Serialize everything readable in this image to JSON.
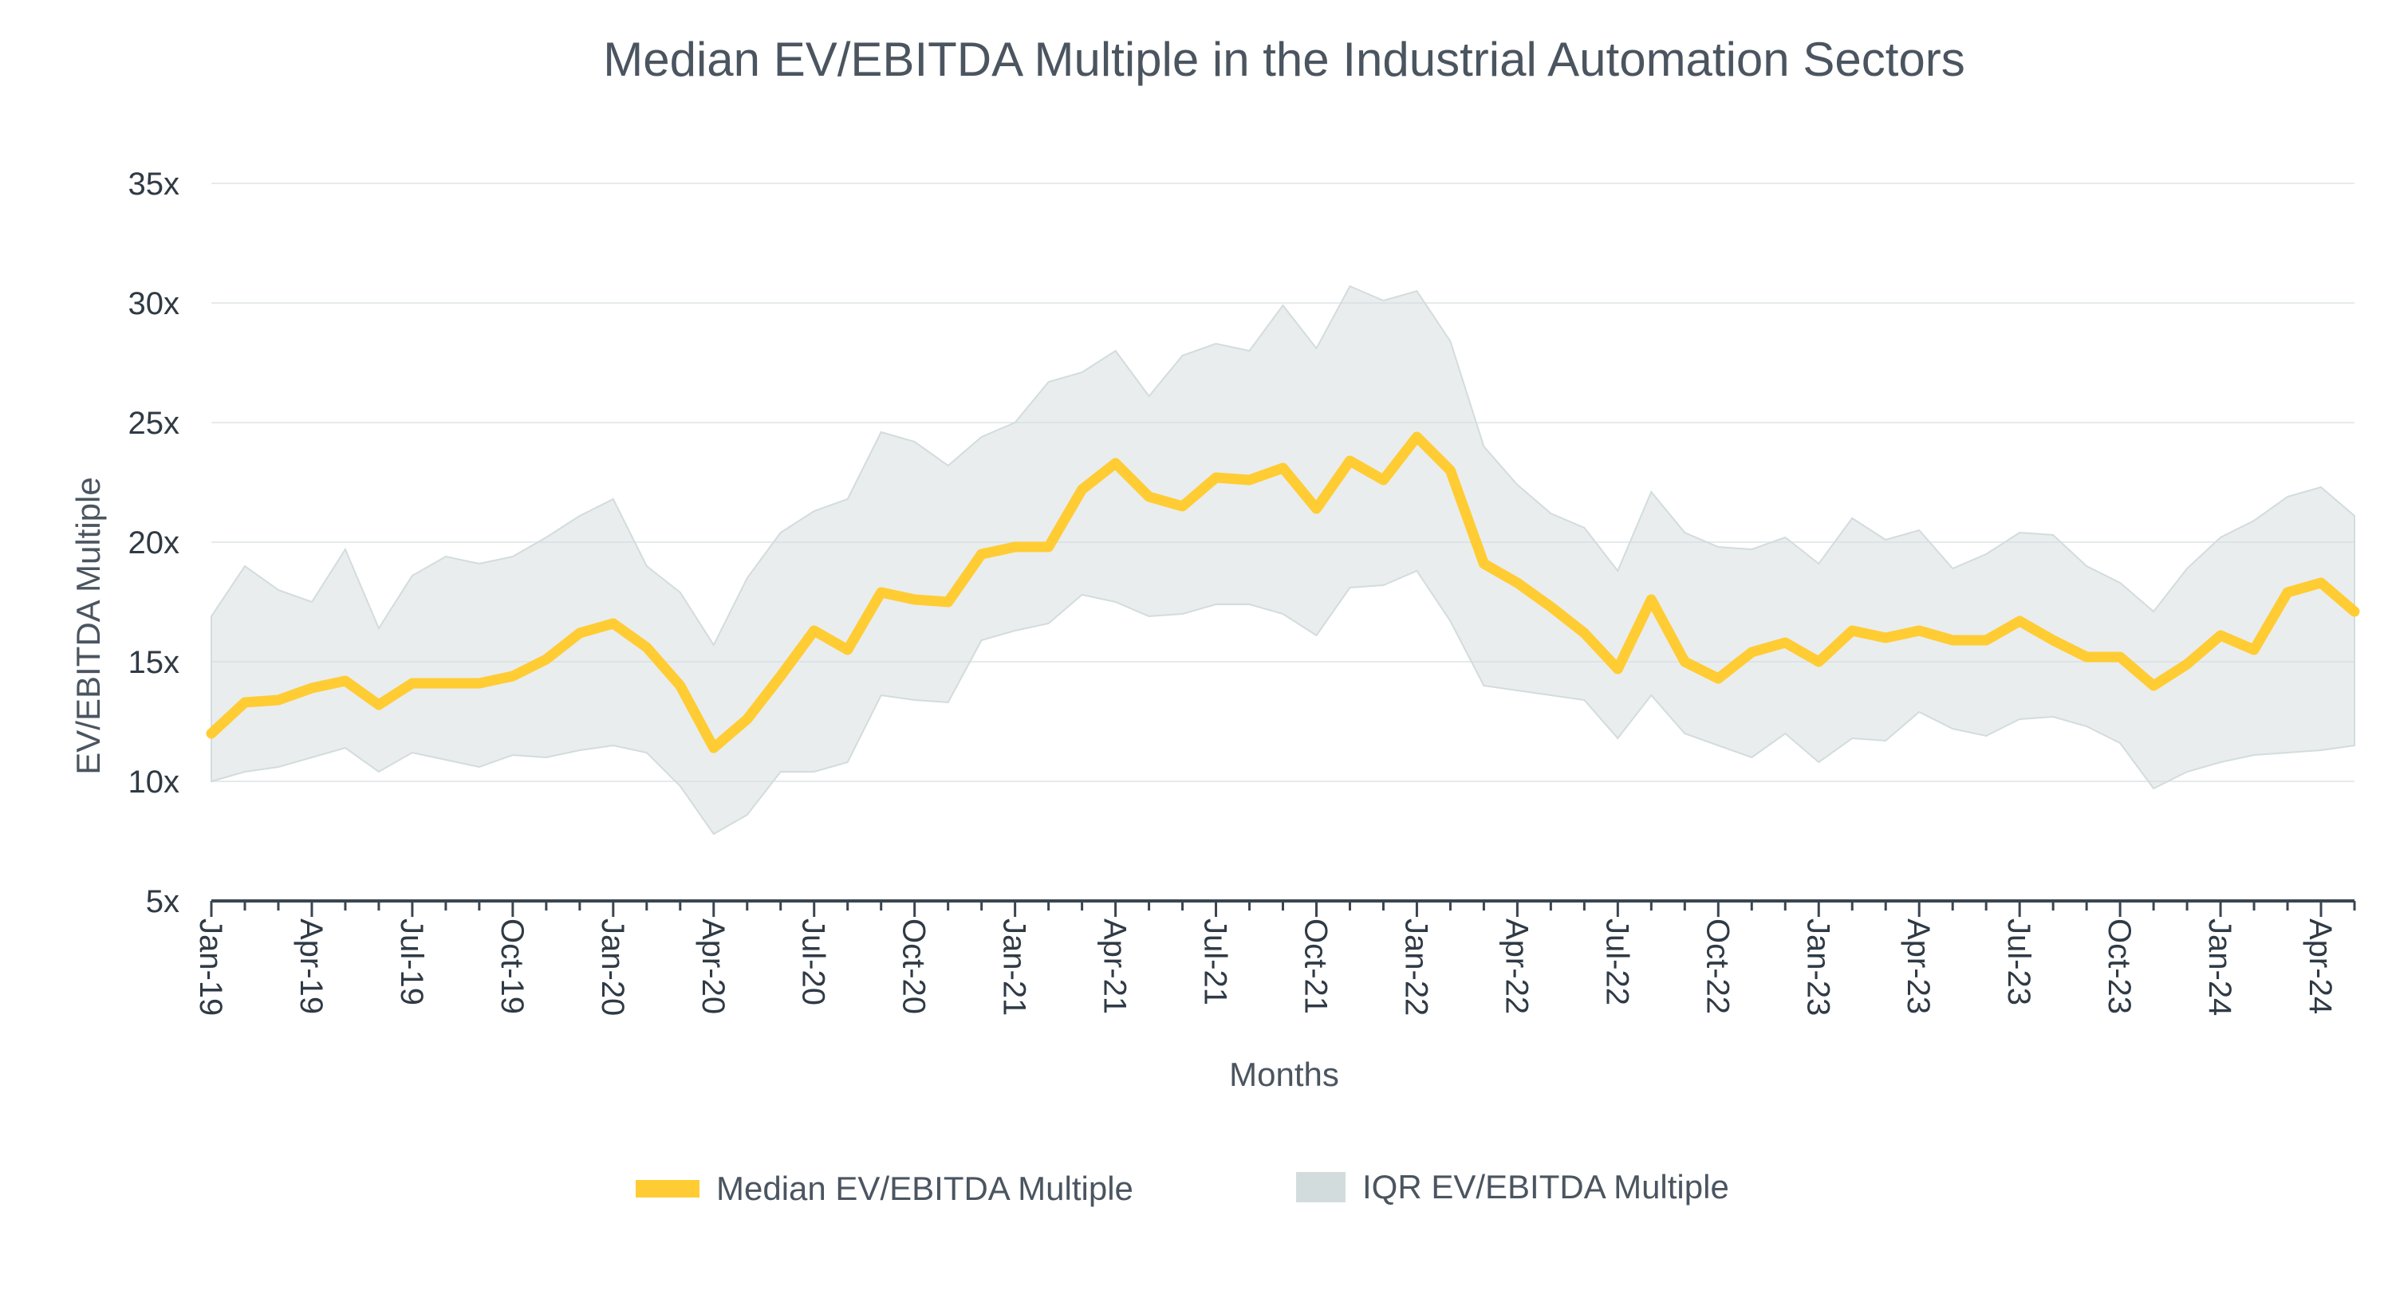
{
  "chart_data": {
    "type": "line",
    "title": "Median EV/EBITDA Multiple in the Industrial Automation Sectors",
    "xlabel": "Months",
    "ylabel": "EV/EBITDA Multiple",
    "ylim": [
      5,
      35
    ],
    "y_ticks": [
      5,
      10,
      15,
      20,
      25,
      30,
      35
    ],
    "y_tick_suffix": "x",
    "x_tick_labels": [
      "Jan-19",
      "Apr-19",
      "Jul-19",
      "Oct-19",
      "Jan-20",
      "Apr-20",
      "Jul-20",
      "Oct-20",
      "Jan-21",
      "Apr-21",
      "Jul-21",
      "Oct-21",
      "Jan-22",
      "Apr-22",
      "Jul-22",
      "Oct-22",
      "Jan-23",
      "Apr-23",
      "Jul-23",
      "Oct-23",
      "Jan-24",
      "Apr-24"
    ],
    "x_tick_step": 3,
    "months": [
      "Jan-19",
      "Feb-19",
      "Mar-19",
      "Apr-19",
      "May-19",
      "Jun-19",
      "Jul-19",
      "Aug-19",
      "Sep-19",
      "Oct-19",
      "Nov-19",
      "Dec-19",
      "Jan-20",
      "Feb-20",
      "Mar-20",
      "Apr-20",
      "May-20",
      "Jun-20",
      "Jul-20",
      "Aug-20",
      "Sep-20",
      "Oct-20",
      "Nov-20",
      "Dec-20",
      "Jan-21",
      "Feb-21",
      "Mar-21",
      "Apr-21",
      "May-21",
      "Jun-21",
      "Jul-21",
      "Aug-21",
      "Sep-21",
      "Oct-21",
      "Nov-21",
      "Dec-21",
      "Jan-22",
      "Feb-22",
      "Mar-22",
      "Apr-22",
      "May-22",
      "Jun-22",
      "Jul-22",
      "Aug-22",
      "Sep-22",
      "Oct-22",
      "Nov-22",
      "Dec-22",
      "Jan-23",
      "Feb-23",
      "Mar-23",
      "Apr-23",
      "May-23",
      "Jun-23",
      "Jul-23",
      "Aug-23",
      "Sep-23",
      "Oct-23",
      "Nov-23",
      "Dec-23",
      "Jan-24",
      "Feb-24",
      "Mar-24",
      "Apr-24",
      "May-24"
    ],
    "series": [
      {
        "name": "Median EV/EBITDA Multiple",
        "kind": "line",
        "color": "#FFCC33",
        "values": [
          12.0,
          13.3,
          13.4,
          13.9,
          14.2,
          13.2,
          14.1,
          14.1,
          14.1,
          14.4,
          15.1,
          16.2,
          16.6,
          15.6,
          14.0,
          11.4,
          12.6,
          14.4,
          16.3,
          15.5,
          17.9,
          17.6,
          17.5,
          19.5,
          19.8,
          19.8,
          22.2,
          23.3,
          21.9,
          21.5,
          22.7,
          22.6,
          23.1,
          21.4,
          23.4,
          22.6,
          24.4,
          23.0,
          19.1,
          18.3,
          17.3,
          16.2,
          14.7,
          17.6,
          15.0,
          14.3,
          15.4,
          15.8,
          15.0,
          16.3,
          16.0,
          16.3,
          15.9,
          15.9,
          16.7,
          15.9,
          15.2,
          15.2,
          14.0,
          14.9,
          16.1,
          15.5,
          17.9,
          18.3,
          17.1
        ]
      },
      {
        "name": "IQR EV/EBITDA Multiple",
        "kind": "band",
        "color": "#D3DCDD",
        "upper": [
          16.9,
          19.0,
          18.0,
          17.5,
          19.7,
          16.4,
          18.6,
          19.4,
          19.1,
          19.4,
          20.2,
          21.1,
          21.8,
          19.0,
          17.9,
          15.7,
          18.5,
          20.4,
          21.3,
          21.8,
          24.6,
          24.2,
          23.2,
          24.4,
          25.0,
          26.7,
          27.1,
          28.0,
          26.1,
          27.8,
          28.3,
          28.0,
          29.9,
          28.1,
          30.7,
          30.1,
          30.5,
          28.4,
          24.0,
          22.4,
          21.2,
          20.6,
          18.8,
          22.1,
          20.4,
          19.8,
          19.7,
          20.2,
          19.1,
          21.0,
          20.1,
          20.5,
          18.9,
          19.5,
          20.4,
          20.3,
          19.0,
          18.3,
          17.1,
          18.9,
          20.2,
          20.9,
          21.9,
          22.3,
          21.1
        ],
        "lower": [
          10.0,
          10.4,
          10.6,
          11.0,
          11.4,
          10.4,
          11.2,
          10.9,
          10.6,
          11.1,
          11.0,
          11.3,
          11.5,
          11.2,
          9.8,
          7.8,
          8.6,
          10.4,
          10.4,
          10.8,
          13.6,
          13.4,
          13.3,
          15.9,
          16.3,
          16.6,
          17.8,
          17.5,
          16.9,
          17.0,
          17.4,
          17.4,
          17.0,
          16.1,
          18.1,
          18.2,
          18.8,
          16.7,
          14.0,
          13.8,
          13.6,
          13.4,
          11.8,
          13.6,
          12.0,
          11.5,
          11.0,
          12.0,
          10.8,
          11.8,
          11.7,
          12.9,
          12.2,
          11.9,
          12.6,
          12.7,
          12.3,
          11.6,
          9.7,
          10.4,
          10.8,
          11.1,
          11.2,
          11.3,
          11.5
        ]
      }
    ],
    "legend": [
      {
        "label": "Median EV/EBITDA Multiple",
        "color": "#FFCC33"
      },
      {
        "label": "IQR EV/EBITDA Multiple",
        "color": "#D3DCDD"
      }
    ],
    "grid": true,
    "legend_position": "bottom-center"
  }
}
